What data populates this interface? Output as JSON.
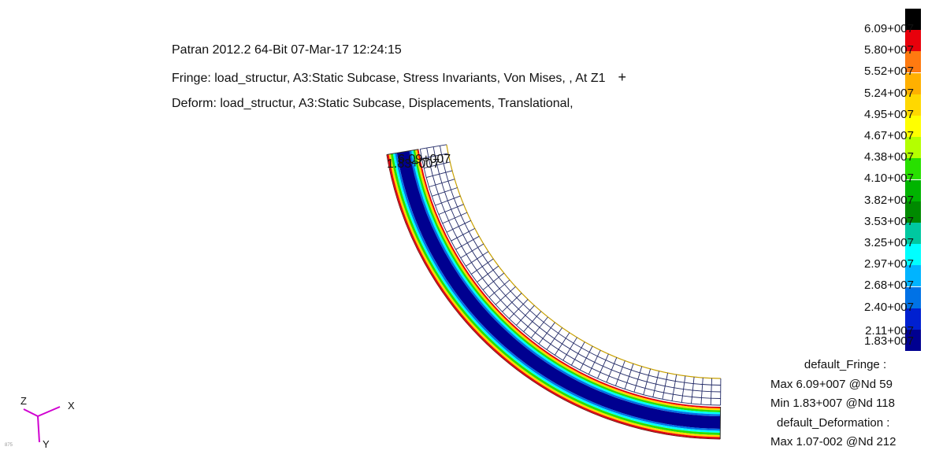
{
  "header": {
    "line1": "Patran 2012.2 64-Bit 07-Mar-17 12:24:15",
    "line2": "Fringe: load_structur, A3:Static Subcase, Stress Invariants, Von Mises, , At Z1",
    "line2_symbol": "+",
    "line3": "Deform: load_structur, A3:Static Subcase, Displacements, Translational,"
  },
  "legend": {
    "labels": [
      "6.09+007",
      "5.80+007",
      "5.52+007",
      "5.24+007",
      "4.95+007",
      "4.67+007",
      "4.38+007",
      "4.10+007",
      "3.82+007",
      "3.53+007",
      "3.25+007",
      "2.97+007",
      "2.68+007",
      "2.40+007",
      "2.11+007",
      "1.83+007"
    ],
    "colors": [
      "#000000",
      "#e8000b",
      "#ff7a10",
      "#ffb000",
      "#ffd800",
      "#ffff00",
      "#b4ff00",
      "#28e000",
      "#00b400",
      "#008a00",
      "#00c8a0",
      "#00ffff",
      "#00b4ff",
      "#0072e6",
      "#0020d0",
      "#000090"
    ]
  },
  "summary": {
    "fringe_title": "default_Fringe :",
    "fringe_max": "Max 6.09+007 @Nd 59",
    "fringe_min": "Min 1.83+007 @Nd 118",
    "deform_title": "default_Deformation :",
    "deform_max": "Max 1.07-002 @Nd 212"
  },
  "plot": {
    "max_marker": "6.09+007",
    "min_marker": "1.83+007"
  },
  "triad": {
    "z_label": "Z",
    "x_label": "X",
    "y_label": "Y",
    "tiny": "875"
  }
}
